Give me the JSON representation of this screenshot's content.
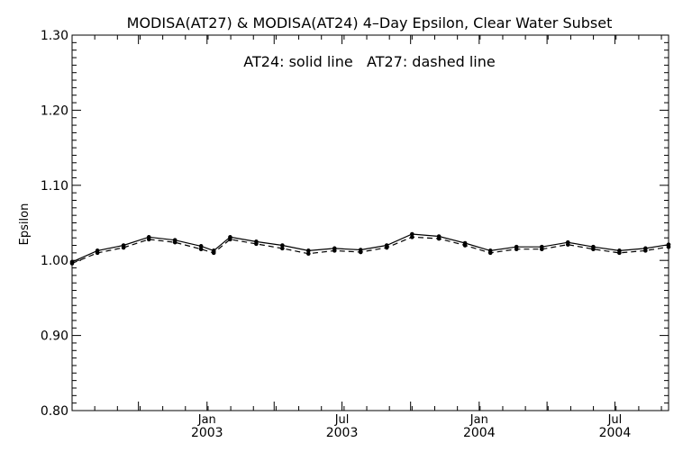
{
  "chart_data": {
    "type": "line",
    "title": "MODISA(AT27) & MODISA(AT24) 4–Day Epsilon, Clear Water Subset",
    "annotation": "AT24: solid line   AT27: dashed line",
    "xlabel": "",
    "ylabel": "Epsilon",
    "ylim": [
      0.8,
      1.3
    ],
    "yticks": [
      0.8,
      0.9,
      1.0,
      1.1,
      1.2,
      1.3
    ],
    "ytick_labels": [
      "0.80",
      "0.90",
      "1.00",
      "1.10",
      "1.20",
      "1.30"
    ],
    "xlim": [
      "2002-07-04",
      "2004-09-11"
    ],
    "xticks": [
      {
        "date": "2003-01-01",
        "line1": "Jan",
        "line2": "2003"
      },
      {
        "date": "2003-07-01",
        "line1": "Jul",
        "line2": "2003"
      },
      {
        "date": "2004-01-01",
        "line1": "Jan",
        "line2": "2004"
      },
      {
        "date": "2004-07-01",
        "line1": "Jul",
        "line2": "2004"
      }
    ],
    "minor_xticks": [
      "2002-07-01",
      "2002-10-01",
      "2003-04-01",
      "2003-10-01",
      "2004-04-01"
    ],
    "grid": false,
    "series": [
      {
        "name": "AT24",
        "style": "solid",
        "x": [
          "2002-07-04",
          "2002-08-07",
          "2002-09-11",
          "2002-10-15",
          "2002-11-19",
          "2002-12-24",
          "2003-01-10",
          "2003-02-01",
          "2003-03-08",
          "2003-04-12",
          "2003-05-17",
          "2003-06-21",
          "2003-07-26",
          "2003-08-30",
          "2003-10-03",
          "2003-11-08",
          "2003-12-13",
          "2004-01-16",
          "2004-02-20",
          "2004-03-25",
          "2004-04-29",
          "2004-06-02",
          "2004-07-07",
          "2004-08-11",
          "2004-09-11"
        ],
        "values": [
          0.998,
          1.013,
          1.02,
          1.031,
          1.027,
          1.019,
          1.013,
          1.031,
          1.025,
          1.02,
          1.013,
          1.016,
          1.014,
          1.02,
          1.035,
          1.032,
          1.023,
          1.013,
          1.018,
          1.018,
          1.024,
          1.018,
          1.013,
          1.016,
          1.021
        ]
      },
      {
        "name": "AT27",
        "style": "dashed",
        "x": [
          "2002-07-04",
          "2002-08-07",
          "2002-09-11",
          "2002-10-15",
          "2002-11-19",
          "2002-12-24",
          "2003-01-10",
          "2003-02-01",
          "2003-03-08",
          "2003-04-12",
          "2003-05-17",
          "2003-06-21",
          "2003-07-26",
          "2003-08-30",
          "2003-10-03",
          "2003-11-08",
          "2003-12-13",
          "2004-01-16",
          "2004-02-20",
          "2004-03-25",
          "2004-04-29",
          "2004-06-02",
          "2004-07-07",
          "2004-08-11",
          "2004-09-11"
        ],
        "values": [
          0.996,
          1.01,
          1.017,
          1.028,
          1.024,
          1.015,
          1.01,
          1.028,
          1.022,
          1.016,
          1.009,
          1.013,
          1.011,
          1.017,
          1.031,
          1.029,
          1.02,
          1.01,
          1.015,
          1.015,
          1.021,
          1.015,
          1.01,
          1.013,
          1.018
        ]
      }
    ]
  }
}
